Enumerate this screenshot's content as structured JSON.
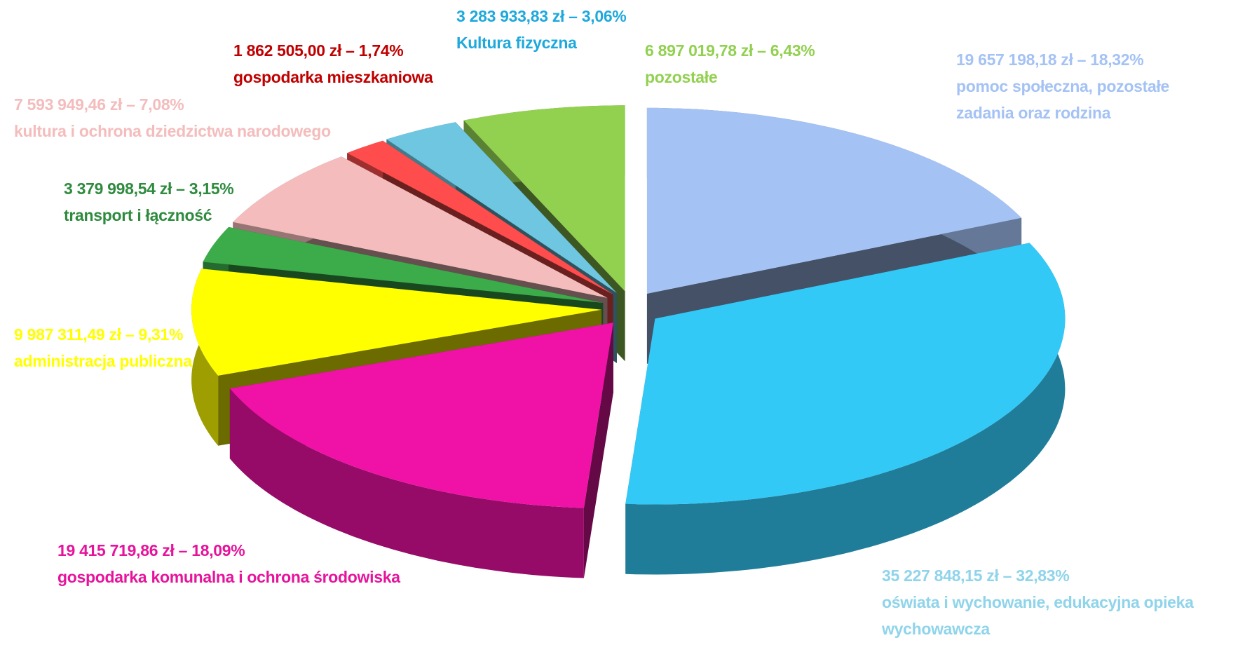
{
  "chart_data": {
    "type": "pie3d",
    "categories": [
      "pomoc społeczna, pozostałe zadania oraz rodzina",
      "oświata i wychowanie, edukacyjna opieka wychowawcza",
      "gospodarka komunalna i ochrona środowiska",
      "administracja publiczna",
      "transport i łączność",
      "kultura i ochrona dziedzictwa narodowego",
      "gospodarka mieszkaniowa",
      "Kultura fizyczna",
      "pozostałe"
    ],
    "values": [
      18.32,
      32.83,
      18.09,
      9.31,
      3.15,
      7.08,
      1.74,
      3.06,
      6.43
    ],
    "value_labels": [
      "19 657 198,18 zł – 18,32%",
      "35 227 848,15 zł – 32,83%",
      "19 415 719,86 zł – 18,09%",
      "9 987 311,49 zł – 9,31%",
      "3 379 998,54 zł – 3,15%",
      "7 593 949,46 zł – 7,08%",
      "1 862 505,00 zł – 1,74%",
      "3 283 933,83 zł – 3,06%",
      "6 897 019,78 zł – 6,43%"
    ],
    "colors": [
      "#a4c2f4",
      "#33c9f7",
      "#f012a6",
      "#ffff00",
      "#3cab4a",
      "#f4bcbc",
      "#ff4c4c",
      "#6ec6e0",
      "#92d050"
    ],
    "label_colors": [
      "#a4c2f4",
      "#8fd4ea",
      "#e6139b",
      "#ffff00",
      "#2e8b3e",
      "#f4bcbc",
      "#c00000",
      "#1ea8dc",
      "#92d050"
    ]
  }
}
